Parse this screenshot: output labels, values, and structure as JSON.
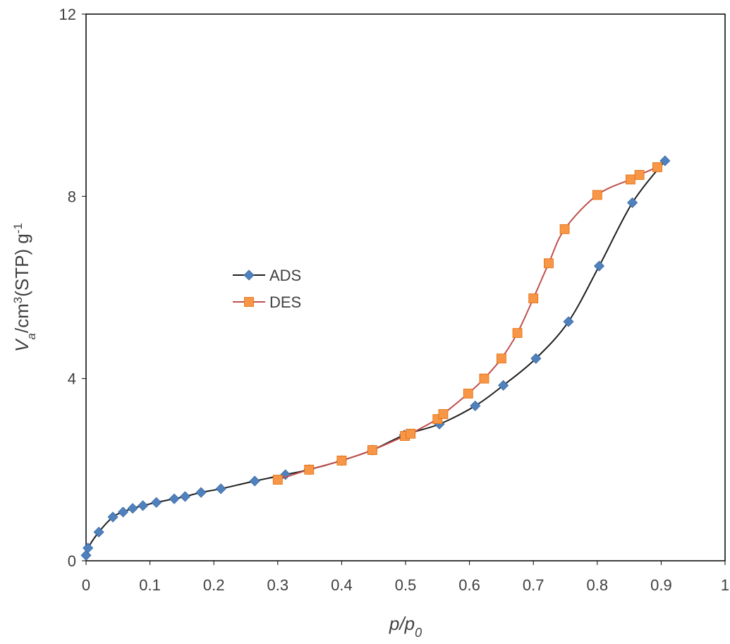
{
  "chart_data": {
    "type": "line",
    "xlabel": [
      "p/p",
      "0"
    ],
    "ylabel": [
      "V",
      "a",
      "/cm",
      "3",
      "(STP) g",
      "-1"
    ],
    "xlim": [
      0,
      1
    ],
    "xticks": [
      0,
      0.1,
      0.2,
      0.3,
      0.4,
      0.5,
      0.6,
      0.7,
      0.8,
      0.9,
      1
    ],
    "ylim": [
      0,
      12
    ],
    "yticks": [
      0,
      4,
      8,
      12
    ],
    "legend": "center-left",
    "series": [
      {
        "name": "ADS",
        "color": "#1f1f1f",
        "marker": "diamond",
        "marker_color": "#4f81bd",
        "x": [
          0,
          0.003,
          0.02,
          0.042,
          0.058,
          0.073,
          0.089,
          0.11,
          0.138,
          0.155,
          0.18,
          0.211,
          0.264,
          0.312,
          0.349,
          0.4,
          0.448,
          0.498,
          0.553,
          0.609,
          0.653,
          0.704,
          0.755,
          0.803,
          0.855,
          0.906
        ],
        "values": [
          0.12,
          0.28,
          0.63,
          0.96,
          1.07,
          1.15,
          1.21,
          1.28,
          1.36,
          1.41,
          1.5,
          1.58,
          1.75,
          1.89,
          2.0,
          2.2,
          2.43,
          2.76,
          3.0,
          3.4,
          3.85,
          4.44,
          5.25,
          6.47,
          7.86,
          8.78
        ]
      },
      {
        "name": "DES",
        "color": "#c0504d",
        "marker": "square",
        "marker_color": "#f79646",
        "x": [
          0.3,
          0.349,
          0.4,
          0.448,
          0.499,
          0.508,
          0.55,
          0.559,
          0.598,
          0.623,
          0.65,
          0.675,
          0.7,
          0.724,
          0.749,
          0.8,
          0.852,
          0.866,
          0.894
        ],
        "values": [
          1.78,
          2.0,
          2.2,
          2.43,
          2.74,
          2.79,
          3.11,
          3.22,
          3.67,
          4.0,
          4.44,
          5.0,
          5.76,
          6.53,
          7.28,
          8.03,
          8.37,
          8.47,
          8.64
        ]
      }
    ]
  }
}
